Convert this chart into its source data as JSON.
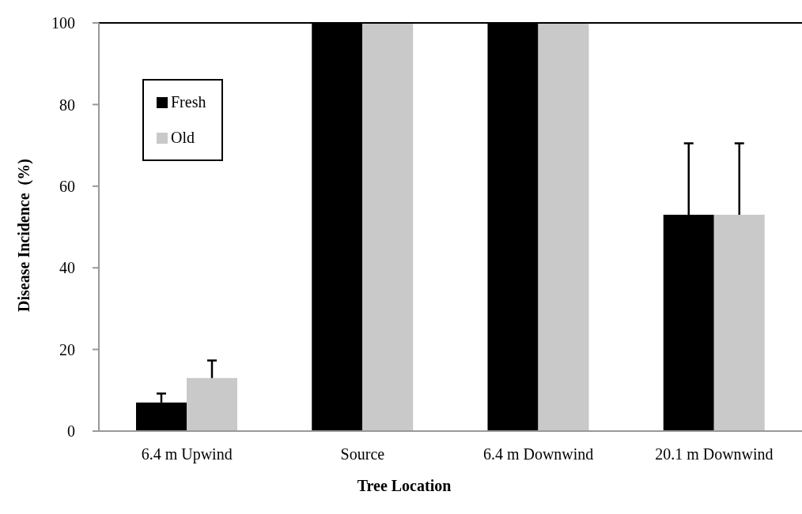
{
  "chart_data": {
    "type": "bar",
    "xlabel": "Tree Location",
    "ylabel": "Disease Incidence  (%)",
    "categories": [
      "6.4 m Upwind",
      "Source",
      "6.4 m Downwind",
      "20.1 m Downwind"
    ],
    "series": [
      {
        "name": "Fresh",
        "color": "#000000",
        "values": [
          7,
          100,
          100,
          53
        ],
        "errors": [
          [
            7,
            9.2
          ],
          null,
          null,
          [
            53,
            70.5
          ]
        ]
      },
      {
        "name": "Old",
        "color": "#c9c9c9",
        "values": [
          13,
          100,
          100,
          53
        ],
        "errors": [
          [
            13,
            17.3
          ],
          null,
          null,
          [
            53,
            70.5
          ]
        ]
      }
    ],
    "ylim": [
      0,
      100
    ],
    "yticks": [
      0,
      20,
      40,
      60,
      80,
      100
    ],
    "grid": false,
    "legend": "top left"
  }
}
